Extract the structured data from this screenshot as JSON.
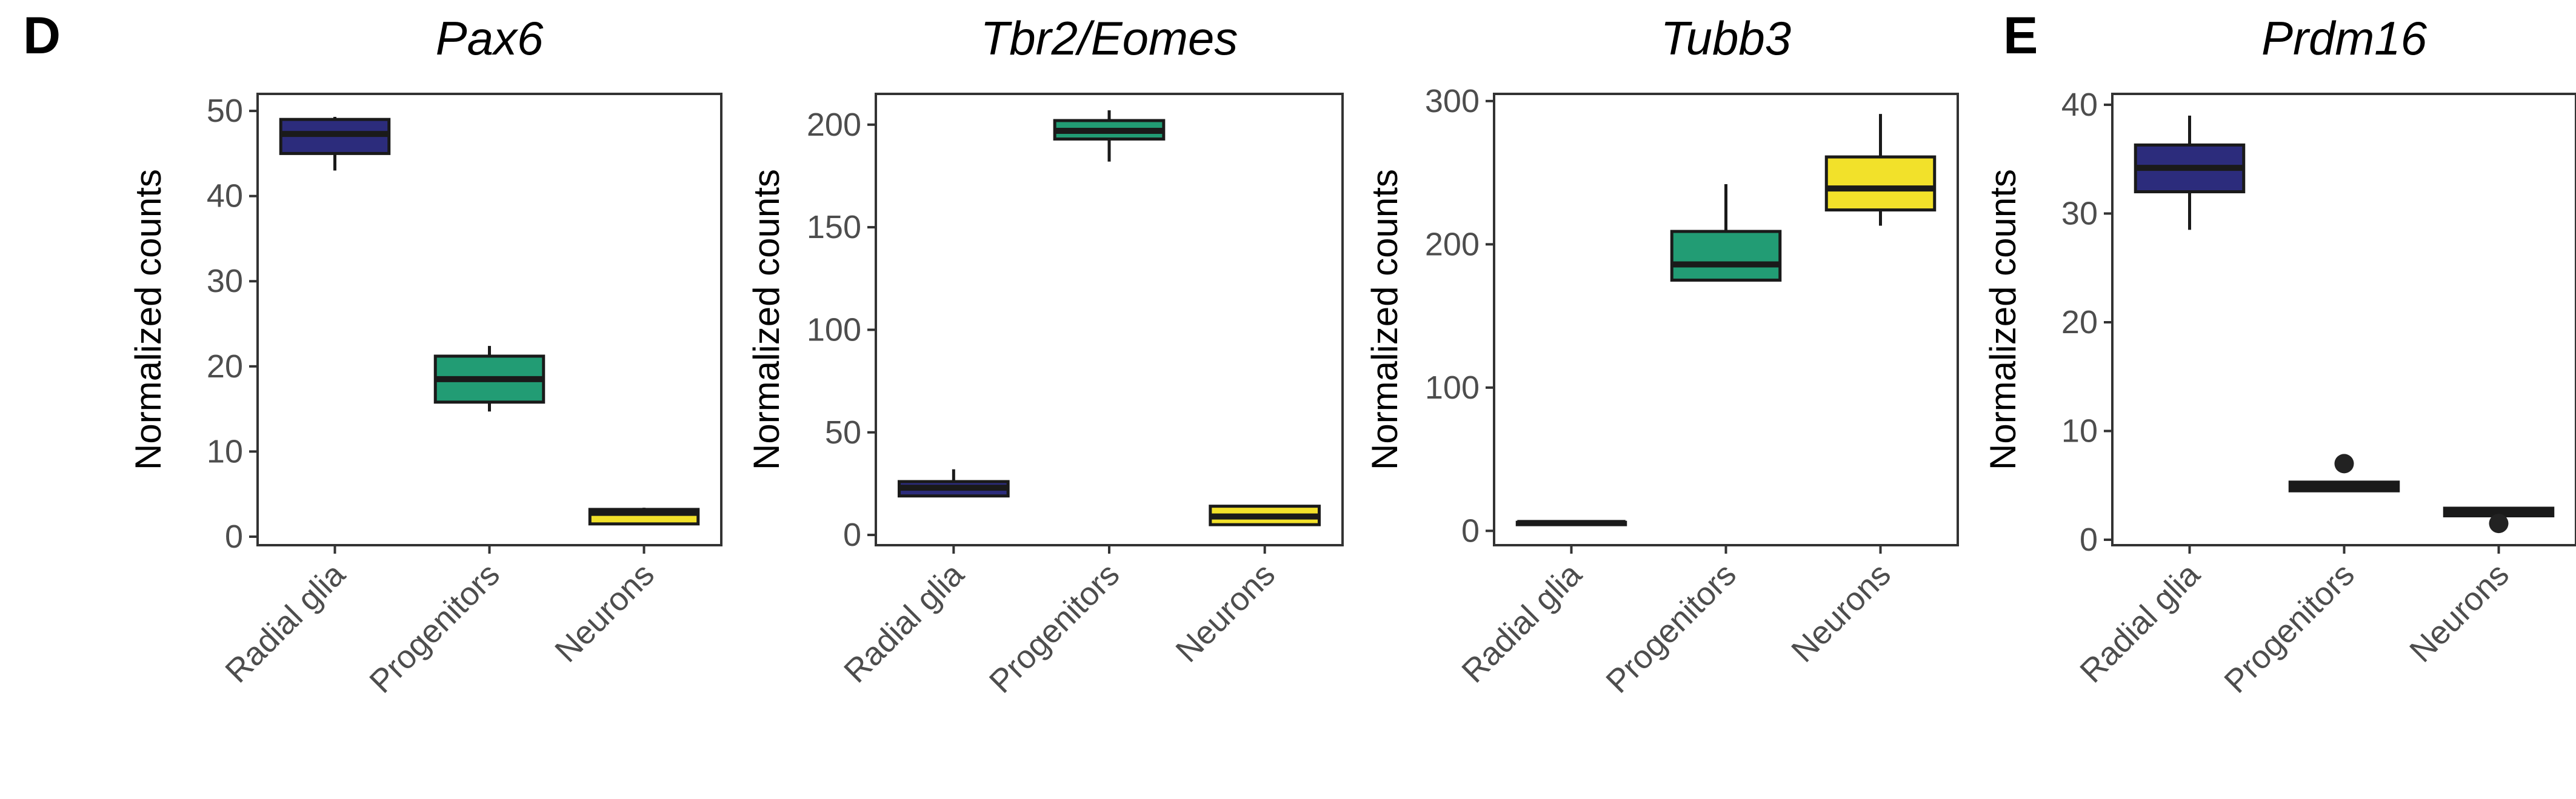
{
  "figure": {
    "panel_labels": [
      "D",
      "E"
    ]
  },
  "chart_data": [
    {
      "type": "box",
      "title": "Pax6",
      "ylabel": "Normalized counts",
      "xlabel": "",
      "categories": [
        "Radial glia",
        "Progenitors",
        "Neurons"
      ],
      "ylim": [
        -1,
        52
      ],
      "yticks": [
        0,
        10,
        20,
        30,
        40,
        50
      ],
      "yticklabels": [
        "0",
        "10",
        "20",
        "30",
        "40",
        "50"
      ],
      "boxes": [
        {
          "category": "Radial glia",
          "whisker_low": 43,
          "q1": 45,
          "median": 47.3,
          "q3": 49,
          "whisker_high": 49.3,
          "outliers": []
        },
        {
          "category": "Progenitors",
          "whisker_low": 14.7,
          "q1": 15.8,
          "median": 18.5,
          "q3": 21.2,
          "whisker_high": 22.4,
          "outliers": []
        },
        {
          "category": "Neurons",
          "whisker_low": 1.4,
          "q1": 1.5,
          "median": 2.8,
          "q3": 3.2,
          "whisker_high": 3.4,
          "outliers": []
        }
      ]
    },
    {
      "type": "box",
      "title": "Tbr2/Eomes",
      "ylabel": "Normalized counts",
      "xlabel": "",
      "categories": [
        "Radial glia",
        "Progenitors",
        "Neurons"
      ],
      "ylim": [
        -5,
        215
      ],
      "yticks": [
        0,
        50,
        100,
        150,
        200
      ],
      "yticklabels": [
        "0",
        "50",
        "100",
        "150",
        "200"
      ],
      "boxes": [
        {
          "category": "Radial glia",
          "whisker_low": 19,
          "q1": 19,
          "median": 23,
          "q3": 26,
          "whisker_high": 32,
          "outliers": []
        },
        {
          "category": "Progenitors",
          "whisker_low": 182,
          "q1": 193,
          "median": 197,
          "q3": 202,
          "whisker_high": 207,
          "outliers": []
        },
        {
          "category": "Neurons",
          "whisker_low": 5,
          "q1": 5,
          "median": 9,
          "q3": 14,
          "whisker_high": 14,
          "outliers": []
        }
      ]
    },
    {
      "type": "box",
      "title": "Tubb3",
      "ylabel": "Normalized counts",
      "xlabel": "",
      "categories": [
        "Radial glia",
        "Progenitors",
        "Neurons"
      ],
      "ylim": [
        -10,
        305
      ],
      "yticks": [
        0,
        100,
        200,
        300
      ],
      "yticklabels": [
        "0",
        "100",
        "200",
        "300"
      ],
      "boxes": [
        {
          "category": "Radial glia",
          "whisker_low": 5,
          "q1": 5,
          "median": 5.5,
          "q3": 6,
          "whisker_high": 6,
          "outliers": []
        },
        {
          "category": "Progenitors",
          "whisker_low": 175,
          "q1": 175,
          "median": 186,
          "q3": 209,
          "whisker_high": 242,
          "outliers": []
        },
        {
          "category": "Neurons",
          "whisker_low": 213,
          "q1": 224,
          "median": 239,
          "q3": 261,
          "whisker_high": 291,
          "outliers": []
        }
      ]
    },
    {
      "type": "box",
      "title": "Prdm16",
      "ylabel": "Normalized counts",
      "xlabel": "",
      "categories": [
        "Radial glia",
        "Progenitors",
        "Neurons"
      ],
      "ylim": [
        -0.5,
        41
      ],
      "yticks": [
        0,
        10,
        20,
        30,
        40
      ],
      "yticklabels": [
        "0",
        "10",
        "20",
        "30",
        "40"
      ],
      "boxes": [
        {
          "category": "Radial glia",
          "whisker_low": 28.5,
          "q1": 32,
          "median": 34.2,
          "q3": 36.3,
          "whisker_high": 39,
          "outliers": []
        },
        {
          "category": "Progenitors",
          "whisker_low": 4.5,
          "q1": 4.5,
          "median": 4.9,
          "q3": 5.3,
          "whisker_high": 5.3,
          "outliers": [
            7
          ]
        },
        {
          "category": "Neurons",
          "whisker_low": 2.2,
          "q1": 2.2,
          "median": 2.6,
          "q3": 2.9,
          "whisker_high": 3.0,
          "outliers": [
            1.5
          ]
        }
      ]
    }
  ],
  "colors": {
    "Radial glia": "#2c2c7c",
    "Progenitors": "#229c74",
    "Neurons": "#f2e12a",
    "box_outline": "#1a1a1a",
    "axis": "#333333",
    "tick_text": "#4d4d4d",
    "text": "#000000"
  }
}
